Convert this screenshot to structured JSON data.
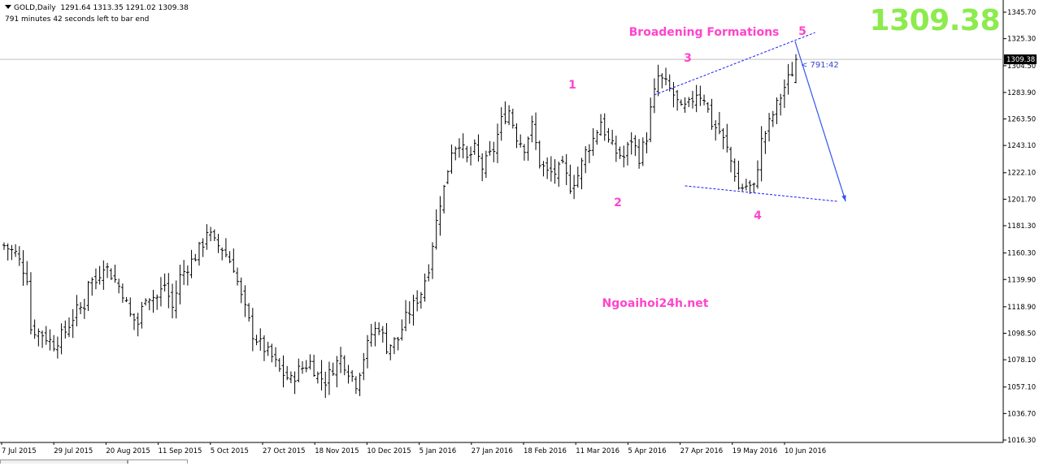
{
  "header": {
    "symbol_line": "GOLD,Daily",
    "ohlc": "1291.64 1313.35 1291.02 1309.38",
    "countdown": "791 minutes 42 seconds left to bar end"
  },
  "big_price": "1309.38",
  "colors": {
    "candle": "#000000",
    "accent_label": "#ff44cc",
    "trendline": "#1a1aff",
    "arrow": "#3355ee",
    "big_price": "#8ceb4d",
    "current_price_line": "#c0c0c0"
  },
  "chart_data": {
    "type": "ohlc",
    "symbol": "GOLD",
    "timeframe": "Daily",
    "ylim": [
      1016.3,
      1352.0
    ],
    "price_ticks": [
      "1345.70",
      "1325.30",
      "1304.50",
      "1283.90",
      "1263.50",
      "1243.10",
      "1222.10",
      "1201.70",
      "1181.30",
      "1160.30",
      "1139.90",
      "1118.90",
      "1098.50",
      "1078.10",
      "1057.10",
      "1036.70",
      "1016.30"
    ],
    "current_price": "1309.38",
    "countdown_tag": "< 791:42",
    "date_ticks": [
      "7 Jul 2015",
      "29 Jul 2015",
      "20 Aug 2015",
      "11 Sep 2015",
      "5 Oct 2015",
      "27 Oct 2015",
      "18 Nov 2015",
      "10 Dec 2015",
      "5 Jan 2016",
      "27 Jan 2016",
      "18 Feb 2016",
      "11 Mar 2016",
      "5 Apr 2016",
      "27 Apr 2016",
      "19 May 2016",
      "10 Jun 2016"
    ],
    "close_path": [
      [
        0,
        1166
      ],
      [
        3,
        1160
      ],
      [
        6,
        1142
      ],
      [
        7,
        1102
      ],
      [
        10,
        1098
      ],
      [
        13,
        1090
      ],
      [
        16,
        1100
      ],
      [
        19,
        1116
      ],
      [
        21,
        1120
      ],
      [
        22,
        1140
      ],
      [
        24,
        1138
      ],
      [
        26,
        1152
      ],
      [
        28,
        1144
      ],
      [
        31,
        1130
      ],
      [
        33,
        1112
      ],
      [
        35,
        1106
      ],
      [
        37,
        1128
      ],
      [
        40,
        1126
      ],
      [
        42,
        1136
      ],
      [
        44,
        1118
      ],
      [
        46,
        1142
      ],
      [
        48,
        1150
      ],
      [
        50,
        1158
      ],
      [
        52,
        1168
      ],
      [
        53,
        1178
      ],
      [
        55,
        1168
      ],
      [
        57,
        1164
      ],
      [
        60,
        1150
      ],
      [
        62,
        1126
      ],
      [
        65,
        1098
      ],
      [
        67,
        1090
      ],
      [
        70,
        1080
      ],
      [
        72,
        1070
      ],
      [
        75,
        1062
      ],
      [
        77,
        1070
      ],
      [
        80,
        1076
      ],
      [
        82,
        1066
      ],
      [
        84,
        1062
      ],
      [
        86,
        1072
      ],
      [
        88,
        1080
      ],
      [
        90,
        1070
      ],
      [
        92,
        1060
      ],
      [
        94,
        1080
      ],
      [
        96,
        1098
      ],
      [
        98,
        1104
      ],
      [
        100,
        1088
      ],
      [
        103,
        1094
      ],
      [
        105,
        1110
      ],
      [
        107,
        1120
      ],
      [
        109,
        1130
      ],
      [
        111,
        1150
      ],
      [
        112,
        1168
      ],
      [
        114,
        1200
      ],
      [
        115,
        1210
      ],
      [
        117,
        1240
      ],
      [
        119,
        1246
      ],
      [
        121,
        1232
      ],
      [
        123,
        1240
      ],
      [
        125,
        1226
      ],
      [
        128,
        1240
      ],
      [
        130,
        1262
      ],
      [
        132,
        1270
      ],
      [
        134,
        1250
      ],
      [
        136,
        1242
      ],
      [
        138,
        1258
      ],
      [
        140,
        1230
      ],
      [
        142,
        1222
      ],
      [
        144,
        1222
      ],
      [
        146,
        1226
      ],
      [
        148,
        1212
      ],
      [
        150,
        1220
      ],
      [
        152,
        1238
      ],
      [
        154,
        1248
      ],
      [
        156,
        1262
      ],
      [
        158,
        1246
      ],
      [
        160,
        1238
      ],
      [
        162,
        1234
      ],
      [
        164,
        1248
      ],
      [
        166,
        1234
      ],
      [
        168,
        1250
      ],
      [
        169,
        1270
      ],
      [
        171,
        1296
      ],
      [
        173,
        1290
      ],
      [
        175,
        1282
      ],
      [
        177,
        1270
      ],
      [
        179,
        1274
      ],
      [
        181,
        1284
      ],
      [
        183,
        1280
      ],
      [
        185,
        1260
      ],
      [
        187,
        1254
      ],
      [
        189,
        1240
      ],
      [
        191,
        1222
      ],
      [
        192,
        1210
      ],
      [
        194,
        1212
      ],
      [
        196,
        1210
      ],
      [
        198,
        1246
      ],
      [
        200,
        1260
      ],
      [
        202,
        1274
      ],
      [
        204,
        1288
      ],
      [
        206,
        1300
      ],
      [
        207,
        1309.38
      ]
    ],
    "bar_count": 208,
    "annotations": {
      "title": "Broadening Formations",
      "watermark": "Ngoaihoi24h.net",
      "wave_labels": [
        "1",
        "2",
        "3",
        "4",
        "5"
      ],
      "upper_trendline": [
        [
          170,
          1282
        ],
        [
          212,
          1330
        ]
      ],
      "lower_trendline": [
        [
          178,
          1212
        ],
        [
          218,
          1200
        ]
      ],
      "projection_arrow": {
        "from": [
          207,
          1312
        ],
        "to": [
          220,
          1200
        ]
      }
    }
  }
}
